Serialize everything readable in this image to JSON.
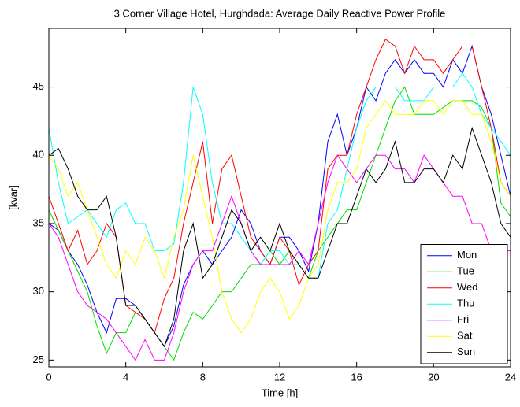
{
  "chart_data": {
    "type": "line",
    "title": "3 Corner Village Hotel, Hurghdada: Average Daily Reactive Power Profile",
    "x_label": "Time [h]",
    "y_label": "[kvar]",
    "xlim": [
      0,
      24
    ],
    "ylim": [
      24.5,
      49.3
    ],
    "xticks": [
      0,
      4,
      8,
      12,
      16,
      20,
      24
    ],
    "yticks": [
      25,
      30,
      35,
      40,
      45
    ],
    "legend": "lower right",
    "x": [
      0,
      0.5,
      1,
      1.5,
      2,
      2.5,
      3,
      3.5,
      4,
      4.5,
      5,
      5.5,
      6,
      6.5,
      7,
      7.5,
      8,
      8.5,
      9,
      9.5,
      10,
      10.5,
      11,
      11.5,
      12,
      12.5,
      13,
      13.5,
      14,
      14.5,
      15,
      15.5,
      16,
      16.5,
      17,
      17.5,
      18,
      18.5,
      19,
      19.5,
      20,
      20.5,
      21,
      21.5,
      22,
      22.5,
      23,
      23.5,
      24
    ],
    "series": [
      {
        "name": "Mon",
        "color": "#0000ff",
        "values": [
          35,
          34.5,
          33,
          32,
          30.5,
          28.5,
          27,
          29.5,
          29.5,
          29,
          28,
          27,
          26,
          27.5,
          30.5,
          32,
          33,
          32,
          33,
          34,
          36,
          35,
          33,
          32,
          34,
          34,
          33,
          31.5,
          35,
          41,
          43,
          40,
          42,
          45,
          44,
          46,
          47,
          46,
          47,
          46,
          46,
          45,
          47,
          46,
          48,
          45,
          43,
          40,
          37
        ]
      },
      {
        "name": "Tue",
        "color": "#00dd00",
        "values": [
          36,
          34.5,
          33,
          31.5,
          30,
          27.5,
          25.5,
          27,
          27,
          28.5,
          28,
          27,
          26,
          25,
          27,
          28.5,
          28,
          29,
          30,
          30,
          31,
          32,
          32,
          33,
          32,
          33,
          32,
          31,
          33,
          34,
          35,
          36,
          36,
          38,
          40,
          42,
          44,
          45,
          43,
          43,
          43,
          43.5,
          44,
          44,
          44,
          43.5,
          42,
          36.5,
          35.5
        ]
      },
      {
        "name": "Wed",
        "color": "#ff0000",
        "values": [
          37,
          35,
          33,
          34.5,
          32,
          33,
          35,
          34,
          29,
          28.5,
          28,
          27,
          29.5,
          31,
          35,
          38,
          41,
          35,
          39,
          40,
          37,
          34,
          33,
          32,
          34,
          33,
          30.5,
          32,
          33,
          39,
          40,
          40,
          43,
          45,
          47,
          48.5,
          48,
          46,
          48,
          47,
          47,
          46,
          47,
          48,
          48,
          45,
          42,
          38,
          37
        ]
      },
      {
        "name": "Thu",
        "color": "#00ffff",
        "values": [
          42,
          38,
          35,
          35.5,
          36,
          35,
          34,
          36,
          36.5,
          35,
          35,
          33,
          33,
          33.5,
          38,
          45,
          43,
          38,
          35,
          35,
          34,
          33,
          32,
          33,
          33,
          32,
          32,
          31,
          31,
          35,
          36,
          39,
          42,
          44,
          45,
          45,
          45,
          44,
          44,
          44,
          45,
          45,
          45,
          46,
          45,
          43,
          42,
          41,
          40
        ]
      },
      {
        "name": "Fri",
        "color": "#ff00ff",
        "values": [
          35,
          34,
          32,
          30,
          29,
          28.5,
          28,
          27,
          26,
          25,
          26.5,
          25,
          25,
          27,
          30,
          32,
          33,
          33,
          35,
          37,
          35,
          33,
          32,
          32,
          32,
          32,
          33,
          32,
          35,
          38,
          40,
          39,
          38,
          39,
          40,
          40,
          39,
          39,
          38,
          40,
          39,
          38,
          37,
          37,
          35,
          35,
          33,
          33,
          33
        ]
      },
      {
        "name": "Sat",
        "color": "#ffff00",
        "values": [
          40,
          39,
          37,
          38,
          36,
          34,
          32,
          31,
          33,
          32,
          34,
          33,
          31,
          34,
          36,
          40,
          37,
          34,
          30,
          28,
          27,
          28,
          30,
          31,
          30,
          28,
          29,
          31,
          32,
          36,
          38,
          38,
          39,
          42,
          43,
          44,
          43,
          43,
          43,
          44,
          44,
          43,
          44,
          44,
          43,
          43,
          41,
          38,
          37
        ]
      },
      {
        "name": "Sun",
        "color": "#000000",
        "values": [
          40,
          40.5,
          39,
          37,
          36,
          36,
          37,
          34,
          29,
          29,
          28,
          27,
          26,
          28,
          33,
          35,
          31,
          32,
          34,
          36,
          35,
          33,
          34,
          33,
          35,
          33,
          32,
          31,
          31,
          33,
          35,
          35,
          37,
          39,
          38,
          39,
          41,
          38,
          38,
          39,
          39,
          38,
          40,
          39,
          42,
          40,
          38,
          35,
          34
        ]
      }
    ]
  }
}
